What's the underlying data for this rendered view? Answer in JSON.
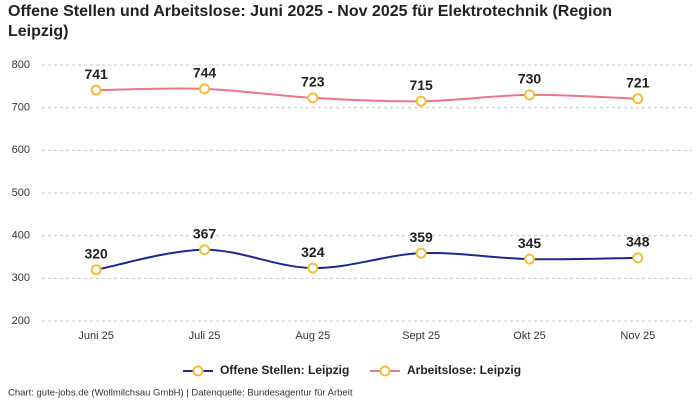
{
  "chart_data": {
    "type": "line",
    "title": "Offene Stellen und Arbeitslose: Juni 2025 - Nov 2025 für Elektrotechnik (Region Leipzig)",
    "categories": [
      "Juni 25",
      "Juli 25",
      "Aug 25",
      "Sept 25",
      "Okt 25",
      "Nov 25"
    ],
    "series": [
      {
        "name": "Offene Stellen: Leipzig",
        "color": "#1b2a8f",
        "values": [
          320,
          367,
          324,
          359,
          345,
          348
        ]
      },
      {
        "name": "Arbeitslose: Leipzig",
        "color": "#f07389",
        "values": [
          741,
          744,
          723,
          715,
          730,
          721
        ]
      }
    ],
    "marker_color": "#f2c037",
    "ylim": [
      200,
      800
    ],
    "yticks": [
      200,
      300,
      400,
      500,
      600,
      700,
      800
    ],
    "grid": true,
    "legend": "bottom",
    "source": "Chart: gute-jobs.de (Wollmilchsau GmbH) | Datenquelle: Bundesagentur für Arbeit"
  }
}
